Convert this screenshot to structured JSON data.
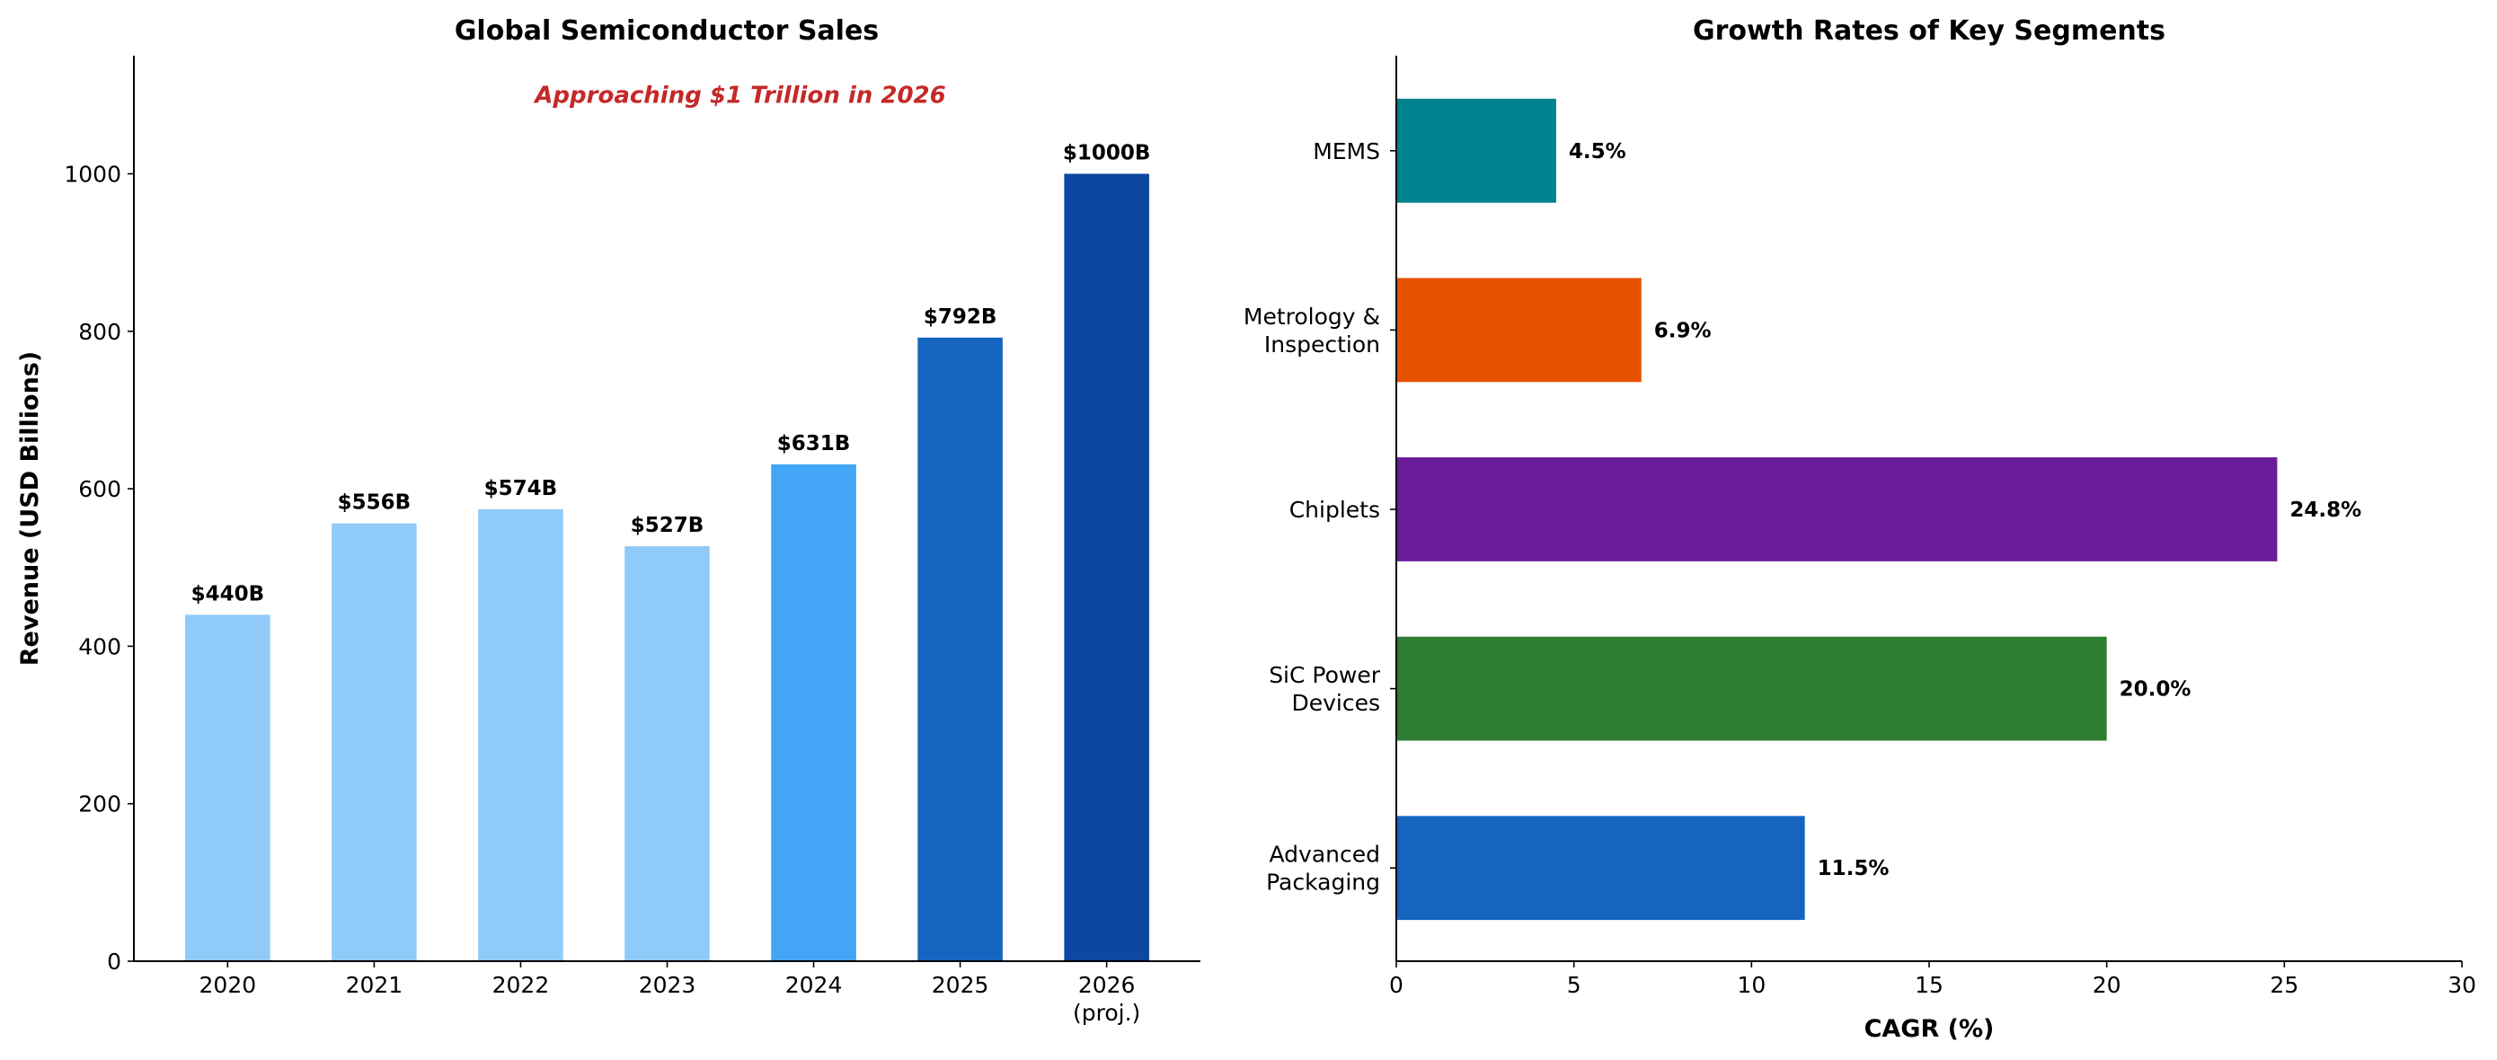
{
  "chart_data": [
    {
      "type": "bar",
      "title": "Global Semiconductor Sales",
      "xlabel": "",
      "ylabel": "Revenue (USD Billions)",
      "categories": [
        "2020",
        "2021",
        "2022",
        "2023",
        "2024",
        "2025",
        "2026\n(proj.)"
      ],
      "values": [
        440,
        556,
        574,
        527,
        631,
        792,
        1000
      ],
      "data_labels": [
        "$440B",
        "$556B",
        "$574B",
        "$527B",
        "$631B",
        "$792B",
        "$1000B"
      ],
      "colors": [
        "#90CAF9",
        "#90CAF9",
        "#90CAF9",
        "#90CAF9",
        "#42A5F5",
        "#1565C0",
        "#0D47A1"
      ],
      "ylim": [
        0,
        1150
      ],
      "yticks": [
        0,
        200,
        400,
        600,
        800,
        1000
      ],
      "grid": false,
      "annotation": {
        "text": "Approaching $1 Trillion in 2026",
        "x": 3.5,
        "y": 1090,
        "color": "#C62828"
      }
    },
    {
      "type": "bar",
      "orientation": "horizontal",
      "title": "Growth Rates of Key Segments",
      "xlabel": "CAGR (%)",
      "ylabel": "",
      "categories": [
        "Advanced\nPackaging",
        "SiC Power\nDevices",
        "Chiplets",
        "Metrology &\nInspection",
        "MEMS"
      ],
      "values": [
        11.5,
        20.0,
        24.8,
        6.9,
        4.5
      ],
      "data_labels": [
        "11.5%",
        "20.0%",
        "24.8%",
        "6.9%",
        "4.5%"
      ],
      "colors": [
        "#1565C0",
        "#2E7D32",
        "#6A1B9A",
        "#E65100",
        "#00838F"
      ],
      "xlim": [
        0,
        30
      ],
      "xticks": [
        0,
        5,
        10,
        15,
        20,
        25,
        30
      ],
      "grid": false
    }
  ]
}
